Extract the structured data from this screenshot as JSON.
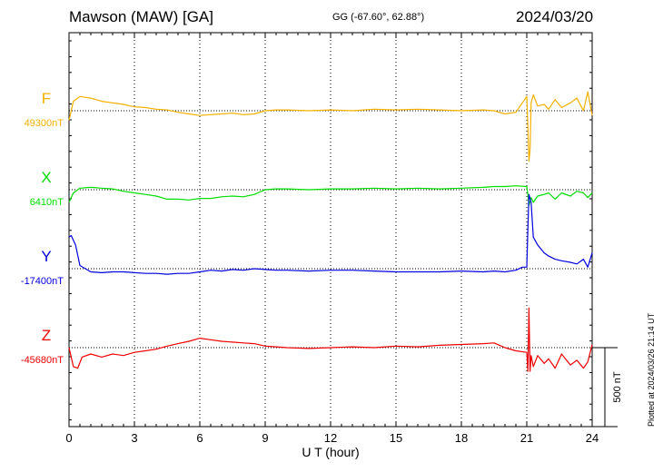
{
  "header": {
    "station": "Mawson (MAW)  [GA]",
    "coords": "GG (-67.60°,  62.88°)",
    "date": "2024/03/20"
  },
  "footer": {
    "plotted": "Plotted at 2024/03/26 21:14 UT"
  },
  "chart_data": {
    "type": "line",
    "title": "Mawson (MAW)  [GA]",
    "xlabel": "U T (hour)",
    "xlim": [
      0,
      24
    ],
    "xticks": [
      "0",
      "3",
      "6",
      "9",
      "12",
      "15",
      "18",
      "21",
      "24"
    ],
    "scale_bar_label": "500 nT",
    "grid": true,
    "series": [
      {
        "name": "F",
        "baseline_label": "49300nT",
        "color": "#f5b000",
        "x": [
          0,
          0.2,
          0.5,
          1,
          1.5,
          2,
          2.5,
          3,
          3.5,
          4,
          4.5,
          5,
          5.5,
          6,
          6.5,
          7,
          7.5,
          8,
          8.5,
          9,
          9.5,
          10,
          11,
          12,
          13,
          14,
          15,
          16,
          17,
          18,
          19,
          19.5,
          20,
          20.5,
          21,
          21.05,
          21.1,
          21.15,
          21.2,
          21.3,
          21.5,
          21.8,
          22,
          22.3,
          22.6,
          23,
          23.3,
          23.6,
          23.8,
          24
        ],
        "y": [
          -60,
          60,
          90,
          80,
          60,
          50,
          40,
          25,
          20,
          10,
          5,
          -10,
          -20,
          -30,
          -25,
          -20,
          -15,
          -25,
          -20,
          0,
          5,
          5,
          0,
          5,
          0,
          10,
          5,
          10,
          5,
          0,
          5,
          0,
          -20,
          -10,
          90,
          -100,
          -320,
          -250,
          50,
          100,
          30,
          40,
          10,
          70,
          20,
          50,
          80,
          0,
          120,
          -30
        ]
      },
      {
        "name": "X",
        "baseline_label": "6410nT",
        "color": "#00dd00",
        "x": [
          0,
          0.2,
          0.5,
          1,
          1.5,
          2,
          2.5,
          3,
          3.5,
          4,
          4.5,
          5,
          5.5,
          6,
          6.5,
          7,
          7.5,
          8,
          8.5,
          9,
          9.5,
          10,
          11,
          12,
          13,
          14,
          15,
          16,
          17,
          18,
          19,
          19.5,
          20,
          20.5,
          21,
          21.05,
          21.1,
          21.2,
          21.3,
          21.5,
          21.8,
          22,
          22.3,
          22.6,
          23,
          23.3,
          23.6,
          23.8,
          24
        ],
        "y": [
          -80,
          -20,
          10,
          15,
          10,
          5,
          -10,
          -20,
          -30,
          -40,
          -60,
          -60,
          -65,
          -55,
          -55,
          -45,
          -40,
          -45,
          -30,
          0,
          5,
          5,
          0,
          5,
          5,
          10,
          5,
          10,
          5,
          10,
          15,
          20,
          20,
          25,
          20,
          -30,
          -100,
          -50,
          -80,
          -40,
          -30,
          -20,
          -60,
          -20,
          -40,
          -10,
          -20,
          -50,
          -20
        ]
      },
      {
        "name": "Y",
        "baseline_label": "-17400nT",
        "color": "#0000dd",
        "x": [
          0,
          0.1,
          0.3,
          0.5,
          1,
          1.5,
          2,
          2.5,
          3,
          3.5,
          4,
          4.5,
          5,
          5.5,
          6,
          6.5,
          7,
          7.5,
          8,
          8.5,
          9,
          9.5,
          10,
          11,
          12,
          13,
          14,
          15,
          16,
          17,
          18,
          19,
          19.5,
          20,
          20.5,
          20.8,
          21,
          21.05,
          21.1,
          21.2,
          21.3,
          21.5,
          21.8,
          22,
          22.3,
          22.6,
          23,
          23.3,
          23.6,
          23.8,
          24
        ],
        "y": [
          200,
          210,
          150,
          20,
          -20,
          -25,
          -20,
          -20,
          -25,
          -30,
          -30,
          -35,
          -30,
          -30,
          -20,
          -10,
          -15,
          -5,
          -10,
          0,
          -5,
          -10,
          -10,
          -15,
          -10,
          -10,
          -15,
          -20,
          -20,
          -20,
          -15,
          -20,
          -15,
          -20,
          -10,
          10,
          10,
          250,
          470,
          420,
          200,
          150,
          100,
          80,
          60,
          50,
          40,
          30,
          60,
          10,
          100
        ]
      },
      {
        "name": "Z",
        "baseline_label": "-45680nT",
        "color": "#ee0000",
        "x": [
          0,
          0.2,
          0.4,
          0.6,
          1,
          1.5,
          2,
          2.5,
          3,
          3.5,
          4,
          4.5,
          5,
          5.5,
          6,
          6.5,
          7,
          7.5,
          8,
          8.5,
          9,
          9.5,
          10,
          11,
          12,
          13,
          14,
          15,
          16,
          17,
          18,
          19,
          19.5,
          20,
          20.5,
          21,
          21.05,
          21.1,
          21.15,
          21.2,
          21.3,
          21.5,
          21.8,
          22,
          22.3,
          22.6,
          23,
          23.3,
          23.6,
          23.8,
          24
        ],
        "y": [
          0,
          -120,
          -130,
          -60,
          -40,
          -60,
          -40,
          -50,
          -30,
          -20,
          -10,
          10,
          25,
          40,
          60,
          50,
          40,
          35,
          30,
          25,
          10,
          5,
          0,
          -5,
          0,
          5,
          0,
          10,
          5,
          15,
          20,
          25,
          30,
          0,
          -20,
          -30,
          -150,
          250,
          -150,
          -50,
          -120,
          -50,
          -100,
          -70,
          -130,
          -40,
          -110,
          -80,
          -130,
          -90,
          20
        ]
      }
    ]
  }
}
